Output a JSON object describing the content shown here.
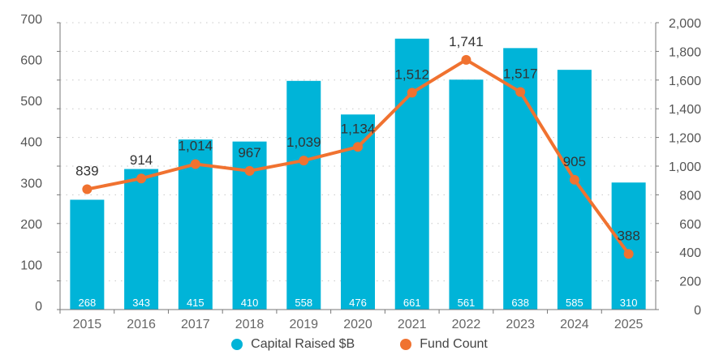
{
  "chart_data": {
    "type": "bar+line",
    "categories": [
      "2015",
      "2016",
      "2017",
      "2018",
      "2019",
      "2020",
      "2021",
      "2022",
      "2023",
      "2024",
      "2025"
    ],
    "series": [
      {
        "name": "Capital Raised $B",
        "type": "bar",
        "axis": "left",
        "color": "#00B4D8",
        "values": [
          268,
          343,
          415,
          410,
          558,
          476,
          661,
          561,
          638,
          585,
          310
        ],
        "labels": [
          "268",
          "343",
          "415",
          "410",
          "558",
          "476",
          "661",
          "561",
          "638",
          "585",
          "310"
        ]
      },
      {
        "name": "Fund Count",
        "type": "line",
        "axis": "right",
        "color": "#F07230",
        "values": [
          839,
          914,
          1014,
          967,
          1039,
          1134,
          1512,
          1741,
          1517,
          905,
          388
        ],
        "labels": [
          "839",
          "914",
          "1,014",
          "967",
          "1,039",
          "1,134",
          "1,512",
          "1,741",
          "1,517",
          "905",
          "388"
        ]
      }
    ],
    "left_axis": {
      "range": [
        0,
        700
      ],
      "ticks": [
        "0",
        "100",
        "200",
        "300",
        "400",
        "500",
        "600",
        "700"
      ]
    },
    "right_axis": {
      "range": [
        0,
        2000
      ],
      "ticks": [
        "0",
        "200",
        "400",
        "600",
        "800",
        "1,000",
        "1,200",
        "1,400",
        "1,600",
        "1,800",
        "2,000"
      ]
    },
    "grid": true,
    "legend": "bottom"
  }
}
